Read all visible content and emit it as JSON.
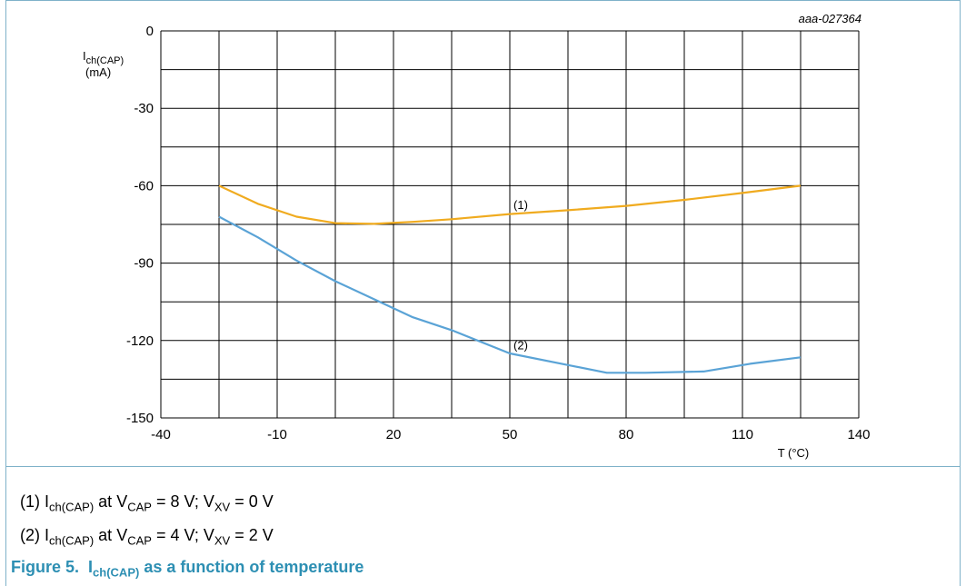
{
  "figure": {
    "id": "aaa-027364",
    "caption_prefix": "Figure 5.",
    "caption_symbol": "I",
    "caption_symbol_sub": "ch(CAP)",
    "caption_text": "as a function of temperature"
  },
  "notes": [
    {
      "num": "(1)",
      "sym": "I",
      "sym_sub": "ch(CAP)",
      "at": "at",
      "v1": "V",
      "v1_sub": "CAP",
      "v1_val": "= 8 V;",
      "v2": "V",
      "v2_sub": "XV",
      "v2_val": "= 0 V"
    },
    {
      "num": "(2)",
      "sym": "I",
      "sym_sub": "ch(CAP)",
      "at": "at",
      "v1": "V",
      "v1_sub": "CAP",
      "v1_val": "= 4 V;",
      "v2": "V",
      "v2_sub": "XV",
      "v2_val": "= 2 V"
    }
  ],
  "chart_data": {
    "type": "line",
    "ylabel": "I",
    "ylabel_sub": "ch(CAP)",
    "ylabel_unit": "(mA)",
    "xlabel": "T (°C)",
    "xlim": [
      -40,
      140
    ],
    "ylim": [
      -150,
      0
    ],
    "xticks": [
      -40,
      -10,
      20,
      50,
      80,
      110,
      140
    ],
    "yticks": [
      0,
      -30,
      -60,
      -90,
      -120,
      -150
    ],
    "grid": true,
    "series": [
      {
        "name": "(1)",
        "color": "#f0ab1f",
        "label_at": [
          50,
          -69
        ],
        "points": [
          [
            -25,
            -60
          ],
          [
            -15,
            -67
          ],
          [
            -5,
            -72
          ],
          [
            5,
            -74.5
          ],
          [
            15,
            -74.8
          ],
          [
            25,
            -74
          ],
          [
            35,
            -73
          ],
          [
            50,
            -71
          ],
          [
            65,
            -69.5
          ],
          [
            80,
            -67.8
          ],
          [
            95,
            -65.5
          ],
          [
            110,
            -62.8
          ],
          [
            125,
            -60
          ]
        ]
      },
      {
        "name": "(2)",
        "color": "#5aa3d6",
        "label_at": [
          50,
          -123.5
        ],
        "points": [
          [
            -25,
            -72
          ],
          [
            -15,
            -80
          ],
          [
            -5,
            -89
          ],
          [
            5,
            -97
          ],
          [
            15,
            -104
          ],
          [
            25,
            -111
          ],
          [
            35,
            -116
          ],
          [
            50,
            -125
          ],
          [
            65,
            -129.5
          ],
          [
            75,
            -132.5
          ],
          [
            85,
            -132.5
          ],
          [
            100,
            -132
          ],
          [
            112,
            -129
          ],
          [
            125,
            -126.5
          ]
        ]
      }
    ]
  }
}
